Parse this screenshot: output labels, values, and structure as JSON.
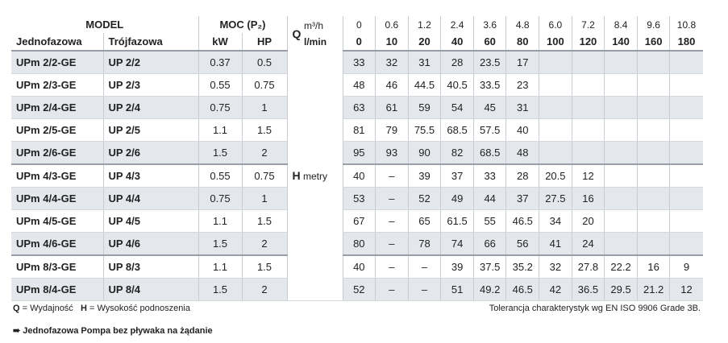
{
  "header": {
    "model": "MODEL",
    "single_phase": "Jednofazowa",
    "three_phase": "Trójfazowa",
    "power": "MOC (P₂)",
    "kw": "kW",
    "hp": "HP",
    "q": "Q",
    "q_unit_m3h": "m³/h",
    "q_unit_lmin": "l/min",
    "flow_m3h": [
      "0",
      "0.6",
      "1.2",
      "2.4",
      "3.6",
      "4.8",
      "6.0",
      "7.2",
      "8.4",
      "9.6",
      "10.8"
    ],
    "flow_lmin": [
      "0",
      "10",
      "20",
      "40",
      "60",
      "80",
      "100",
      "120",
      "140",
      "160",
      "180"
    ]
  },
  "h_label": "H",
  "h_unit": "metry",
  "table": {
    "rows": [
      [
        "UPm 2/2-GE",
        "UP 2/2",
        "0.37",
        "0.5",
        "33",
        "32",
        "31",
        "28",
        "23.5",
        "17",
        null,
        null,
        null,
        null,
        null
      ],
      [
        "UPm 2/3-GE",
        "UP 2/3",
        "0.55",
        "0.75",
        "48",
        "46",
        "44.5",
        "40.5",
        "33.5",
        "23",
        null,
        null,
        null,
        null,
        null
      ],
      [
        "UPm 2/4-GE",
        "UP 2/4",
        "0.75",
        "1",
        "63",
        "61",
        "59",
        "54",
        "45",
        "31",
        null,
        null,
        null,
        null,
        null
      ],
      [
        "UPm 2/5-GE",
        "UP 2/5",
        "1.1",
        "1.5",
        "81",
        "79",
        "75.5",
        "68.5",
        "57.5",
        "40",
        null,
        null,
        null,
        null,
        null
      ],
      [
        "UPm 2/6-GE",
        "UP 2/6",
        "1.5",
        "2",
        "95",
        "93",
        "90",
        "82",
        "68.5",
        "48",
        null,
        null,
        null,
        null,
        null
      ],
      [
        "UPm 4/3-GE",
        "UP 4/3",
        "0.55",
        "0.75",
        "40",
        "–",
        "39",
        "37",
        "33",
        "28",
        "20.5",
        "12",
        null,
        null,
        null
      ],
      [
        "UPm 4/4-GE",
        "UP 4/4",
        "0.75",
        "1",
        "53",
        "–",
        "52",
        "49",
        "44",
        "37",
        "27.5",
        "16",
        null,
        null,
        null
      ],
      [
        "UPm 4/5-GE",
        "UP 4/5",
        "1.1",
        "1.5",
        "67",
        "–",
        "65",
        "61.5",
        "55",
        "46.5",
        "34",
        "20",
        null,
        null,
        null
      ],
      [
        "UPm 4/6-GE",
        "UP 4/6",
        "1.5",
        "2",
        "80",
        "–",
        "78",
        "74",
        "66",
        "56",
        "41",
        "24",
        null,
        null,
        null
      ],
      [
        "UPm 8/3-GE",
        "UP 8/3",
        "1.1",
        "1.5",
        "40",
        "–",
        "–",
        "39",
        "37.5",
        "35.2",
        "32",
        "27.8",
        "22.2",
        "16",
        "9"
      ],
      [
        "UPm 8/4-GE",
        "UP 8/4",
        "1.5",
        "2",
        "52",
        "–",
        "–",
        "51",
        "49.2",
        "46.5",
        "42",
        "36.5",
        "29.5",
        "21.2",
        "12"
      ]
    ]
  },
  "footer": {
    "q_legend_key": "Q",
    "q_legend": "= Wydajność",
    "h_legend_key": "H",
    "h_legend": "= Wysokość podnoszenia",
    "tolerance": "Tolerancja charakterystyk wg EN ISO 9906 Grade 3B.",
    "note": "➠ Jednofazowa Pompa bez pływaka na żądanie"
  }
}
